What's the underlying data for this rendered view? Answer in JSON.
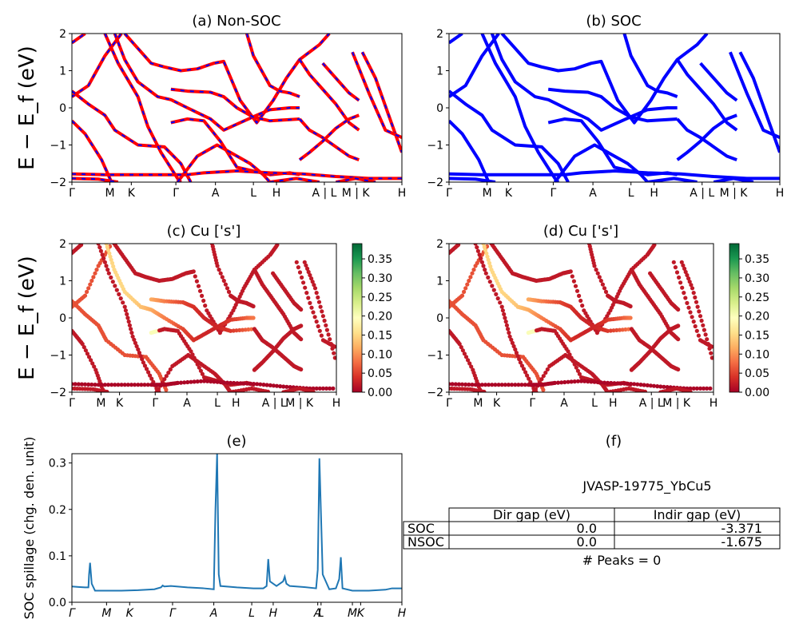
{
  "figure": {
    "colors": {
      "nonsoc_line": "#ff0000",
      "nonsoc_dash": "#0000ff",
      "soc_line": "#0000ff",
      "spillage_line": "#1f77b4",
      "colormap": [
        "#a50026",
        "#d73027",
        "#f46d43",
        "#fdae61",
        "#fee08b",
        "#ffffbf",
        "#d9ef8b",
        "#a6d96a",
        "#66bd63",
        "#1a9850",
        "#006837"
      ]
    }
  },
  "chart_data": [
    {
      "id": "a",
      "type": "line",
      "title": "(a) Non-SOC",
      "ylabel": "E − E_f (eV)",
      "ylim": [
        -2,
        2
      ],
      "yticks": [
        "−2",
        "−1",
        "0",
        "1",
        "2"
      ],
      "kticks": [
        "Γ",
        "M",
        "K",
        "Γ",
        "A",
        "L",
        "H",
        "A | L",
        "M | K",
        "H"
      ],
      "series": [
        {
          "points": [
            [
              0,
              0.3
            ],
            [
              0.05,
              0.6
            ],
            [
              0.1,
              1.4
            ],
            [
              0.15,
              2
            ]
          ]
        },
        {
          "points": [
            [
              0,
              0.45
            ],
            [
              0.05,
              0.1
            ],
            [
              0.1,
              -0.2
            ],
            [
              0.13,
              -0.6
            ],
            [
              0.2,
              -1.0
            ],
            [
              0.28,
              -1.05
            ],
            [
              0.33,
              -1.5
            ],
            [
              0.36,
              -2
            ]
          ]
        },
        {
          "points": [
            [
              0,
              -0.35
            ],
            [
              0.04,
              -0.7
            ],
            [
              0.09,
              -1.4
            ],
            [
              0.12,
              -2
            ]
          ]
        },
        {
          "points": [
            [
              0,
              1.75
            ],
            [
              0.04,
              2
            ]
          ]
        },
        {
          "points": [
            [
              0.1,
              2
            ],
            [
              0.14,
              1.2
            ],
            [
              0.2,
              0.3
            ],
            [
              0.23,
              -0.5
            ],
            [
              0.27,
              -1.2
            ],
            [
              0.32,
              -1.9
            ],
            [
              0.33,
              -2
            ]
          ]
        },
        {
          "points": [
            [
              0.16,
              2
            ],
            [
              0.2,
              1.6
            ],
            [
              0.24,
              1.2
            ],
            [
              0.28,
              1.1
            ],
            [
              0.33,
              1.0
            ],
            [
              0.38,
              1.05
            ],
            [
              0.43,
              1.2
            ],
            [
              0.46,
              1.25
            ],
            [
              0.51,
              0.2
            ],
            [
              0.56,
              -0.4
            ],
            [
              0.61,
              0.2
            ],
            [
              0.65,
              0.8
            ],
            [
              0.69,
              1.3
            ],
            [
              0.75,
              1.7
            ],
            [
              0.78,
              2
            ]
          ]
        },
        {
          "points": [
            [
              0.13,
              2
            ],
            [
              0.16,
              1.3
            ],
            [
              0.2,
              0.7
            ],
            [
              0.26,
              0.3
            ],
            [
              0.3,
              0.22
            ],
            [
              0.35,
              0.0
            ],
            [
              0.42,
              -0.3
            ],
            [
              0.46,
              -0.6
            ],
            [
              0.51,
              -0.4
            ],
            [
              0.56,
              -0.2
            ],
            [
              0.6,
              -0.05
            ],
            [
              0.66,
              0.0
            ],
            [
              0.69,
              0.0
            ]
          ]
        },
        {
          "points": [
            [
              0.3,
              0.5
            ],
            [
              0.35,
              0.45
            ],
            [
              0.42,
              0.42
            ],
            [
              0.46,
              0.3
            ],
            [
              0.5,
              0.0
            ],
            [
              0.55,
              -0.25
            ],
            [
              0.6,
              -0.35
            ],
            [
              0.69,
              -0.3
            ]
          ]
        },
        {
          "points": [
            [
              0.3,
              -0.4
            ],
            [
              0.35,
              -0.3
            ],
            [
              0.4,
              -0.35
            ],
            [
              0.45,
              -0.9
            ],
            [
              0.5,
              -1.6
            ],
            [
              0.55,
              -1.7
            ],
            [
              0.6,
              -1.8
            ],
            [
              0.66,
              -1.75
            ],
            [
              0.69,
              -1.8
            ]
          ]
        },
        {
          "points": [
            [
              0.32,
              -2
            ],
            [
              0.38,
              -1.3
            ],
            [
              0.44,
              -1.0
            ],
            [
              0.48,
              -1.2
            ],
            [
              0.54,
              -1.5
            ],
            [
              0.58,
              -1.8
            ],
            [
              0.6,
              -2
            ]
          ]
        },
        {
          "points": [
            [
              0.53,
              2
            ],
            [
              0.55,
              1.4
            ],
            [
              0.6,
              0.6
            ],
            [
              0.63,
              0.45
            ],
            [
              0.66,
              0.4
            ],
            [
              0.69,
              0.3
            ]
          ]
        },
        {
          "points": [
            [
              0.69,
              1.3
            ],
            [
              0.72,
              0.9
            ],
            [
              0.76,
              0.5
            ],
            [
              0.8,
              0.1
            ],
            [
              0.84,
              -0.4
            ],
            [
              0.87,
              -0.6
            ]
          ]
        },
        {
          "points": [
            [
              0.69,
              -0.3
            ],
            [
              0.72,
              -0.6
            ],
            [
              0.76,
              -0.8
            ],
            [
              0.8,
              -1.05
            ],
            [
              0.84,
              -1.3
            ],
            [
              0.87,
              -1.4
            ]
          ]
        },
        {
          "points": [
            [
              0.69,
              -1.4
            ],
            [
              0.72,
              -1.2
            ],
            [
              0.76,
              -0.9
            ],
            [
              0.8,
              -0.55
            ],
            [
              0.84,
              -0.3
            ],
            [
              0.87,
              -0.2
            ]
          ]
        },
        {
          "points": [
            [
              0.76,
              1.2
            ],
            [
              0.8,
              0.8
            ],
            [
              0.84,
              0.4
            ],
            [
              0.87,
              0.2
            ]
          ]
        },
        {
          "points": [
            [
              0.88,
              1.5
            ],
            [
              0.92,
              0.8
            ],
            [
              0.96,
              -0.2
            ],
            [
              1.0,
              -1.2
            ]
          ]
        },
        {
          "points": [
            [
              0.85,
              1.5
            ],
            [
              0.9,
              0.4
            ],
            [
              0.95,
              -0.6
            ],
            [
              1.0,
              -0.8
            ]
          ]
        },
        {
          "points": [
            [
              0,
              -1.78
            ],
            [
              0.1,
              -1.8
            ],
            [
              0.2,
              -1.8
            ],
            [
              0.3,
              -1.8
            ],
            [
              0.35,
              -1.8
            ],
            [
              0.4,
              -1.75
            ],
            [
              0.5,
              -1.7
            ],
            [
              0.6,
              -1.75
            ],
            [
              0.7,
              -1.78
            ],
            [
              0.8,
              -1.85
            ],
            [
              0.9,
              -1.9
            ],
            [
              1.0,
              -1.9
            ]
          ]
        },
        {
          "points": [
            [
              0,
              -1.9
            ],
            [
              0.08,
              -1.92
            ],
            [
              0.14,
              -2
            ]
          ]
        },
        {
          "points": [
            [
              0.6,
              -2
            ],
            [
              0.68,
              -1.9
            ],
            [
              0.75,
              -2
            ]
          ]
        },
        {
          "points": [
            [
              0.8,
              -2
            ],
            [
              0.86,
              -1.9
            ],
            [
              0.92,
              -2
            ]
          ]
        }
      ]
    },
    {
      "id": "b",
      "type": "line",
      "title": "(b) SOC",
      "ylim": [
        -2,
        2
      ],
      "yticks": [
        "−2",
        "−1",
        "0",
        "1",
        "2"
      ],
      "kticks": [
        "Γ",
        "M",
        "K",
        "Γ",
        "A",
        "L",
        "H",
        "A | L",
        "M | K",
        "H"
      ],
      "series": "same_as_a"
    },
    {
      "id": "c",
      "type": "scatter",
      "title": "(c)  Cu ['s']",
      "ylabel": "E − E_f (eV)",
      "ylim": [
        -2,
        2
      ],
      "yticks": [
        "−2",
        "−1",
        "0",
        "1",
        "2"
      ],
      "kticks": [
        "Γ",
        "M",
        "K",
        "Γ",
        "A",
        "L",
        "H",
        "A | L",
        "M | K",
        "H"
      ],
      "colorbar": {
        "min": 0.0,
        "max": 0.39,
        "ticks": [
          "0.00",
          "0.05",
          "0.10",
          "0.15",
          "0.20",
          "0.25",
          "0.30",
          "0.35"
        ]
      }
    },
    {
      "id": "d",
      "type": "scatter",
      "title": "(d) Cu ['s']",
      "ylim": [
        -2,
        2
      ],
      "yticks": [
        "−2",
        "−1",
        "0",
        "1",
        "2"
      ],
      "kticks": [
        "Γ",
        "M",
        "K",
        "Γ",
        "A",
        "L",
        "H",
        "A | L",
        "M | K",
        "H"
      ],
      "colorbar": {
        "min": 0.0,
        "max": 0.39,
        "ticks": [
          "0.00",
          "0.05",
          "0.10",
          "0.15",
          "0.20",
          "0.25",
          "0.30",
          "0.35"
        ]
      }
    },
    {
      "id": "e",
      "type": "line",
      "title": "(e)",
      "ylabel": "SOC spillage (chg. den. unit)",
      "ylim": [
        0,
        0.32
      ],
      "yticks": [
        "0.0",
        "0.1",
        "0.2",
        "0.3"
      ],
      "kticks": [
        "Γ",
        "M",
        "K",
        "Γ",
        "A",
        "L",
        "H",
        "A",
        "L",
        "M",
        "K",
        "H"
      ],
      "x": [
        0,
        0.02,
        0.04,
        0.05,
        0.052,
        0.055,
        0.06,
        0.07,
        0.09,
        0.1,
        0.15,
        0.2,
        0.25,
        0.27,
        0.275,
        0.28,
        0.3,
        0.35,
        0.4,
        0.43,
        0.435,
        0.44,
        0.445,
        0.45,
        0.5,
        0.55,
        0.58,
        0.59,
        0.595,
        0.6,
        0.62,
        0.64,
        0.645,
        0.65,
        0.66,
        0.7,
        0.74,
        0.745,
        0.75,
        0.76,
        0.78,
        0.8,
        0.81,
        0.815,
        0.82,
        0.85,
        0.9,
        0.95,
        0.97,
        1.0
      ],
      "values": [
        0.034,
        0.033,
        0.032,
        0.032,
        0.06,
        0.085,
        0.04,
        0.025,
        0.025,
        0.025,
        0.025,
        0.026,
        0.028,
        0.032,
        0.036,
        0.034,
        0.035,
        0.032,
        0.03,
        0.028,
        0.2,
        0.32,
        0.06,
        0.035,
        0.032,
        0.03,
        0.03,
        0.035,
        0.093,
        0.045,
        0.035,
        0.045,
        0.055,
        0.04,
        0.035,
        0.033,
        0.03,
        0.07,
        0.31,
        0.06,
        0.028,
        0.03,
        0.05,
        0.097,
        0.03,
        0.025,
        0.025,
        0.027,
        0.03,
        0.03
      ]
    }
  ],
  "table_panel": {
    "title": "(f)",
    "caption": "JVASP-19775_YbCu5",
    "headers": [
      "",
      "Dir gap (eV)",
      "Indir gap (eV)"
    ],
    "rows": [
      [
        "SOC",
        "0.0",
        "-3.371"
      ],
      [
        "NSOC",
        "0.0",
        "-1.675"
      ]
    ],
    "footer": "# Peaks = 0"
  }
}
